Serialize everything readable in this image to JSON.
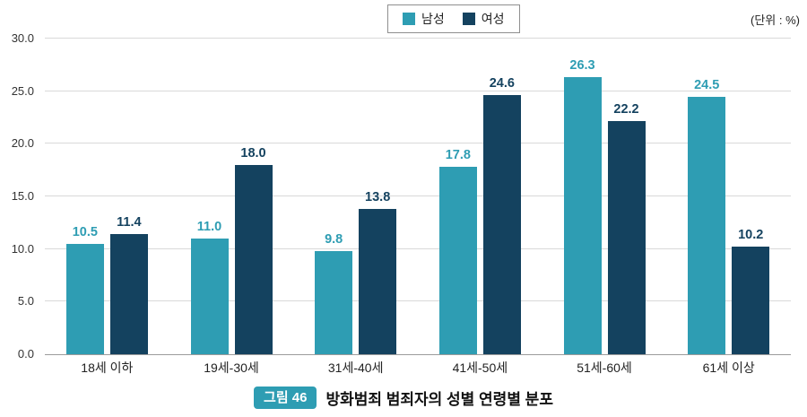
{
  "unit_label": "(단위 : %)",
  "legend": {
    "items": [
      {
        "label": "남성",
        "color": "#2E9DB3"
      },
      {
        "label": "여성",
        "color": "#14425F"
      }
    ]
  },
  "chart_data": {
    "type": "bar",
    "title": "방화범죄 범죄자의 성별 연령별 분포",
    "categories": [
      "18세 이하",
      "19세-30세",
      "31세-40세",
      "41세-50세",
      "51세-60세",
      "61세 이상"
    ],
    "series": [
      {
        "name": "남성",
        "color": "#2E9DB3",
        "values": [
          10.5,
          11.0,
          9.8,
          17.8,
          26.3,
          24.5
        ]
      },
      {
        "name": "여성",
        "color": "#14425F",
        "values": [
          11.4,
          18.0,
          13.8,
          24.6,
          22.2,
          10.2
        ]
      }
    ],
    "xlabel": "",
    "ylabel": "",
    "ylim": [
      0,
      30
    ],
    "yticks": [
      "0.0",
      "5.0",
      "10.0",
      "15.0",
      "20.0",
      "25.0",
      "30.0"
    ],
    "grid": true,
    "legend_position": "top-right",
    "value_labels": true
  },
  "caption": {
    "badge": "그림 46",
    "title": "방화범죄 범죄자의 성별 연령별 분포"
  },
  "colors": {
    "male": "#2E9DB3",
    "female": "#14425F",
    "gridline": "#d9d9d9",
    "axis": "#9b9b9b",
    "badge": "#2E9DB3"
  }
}
